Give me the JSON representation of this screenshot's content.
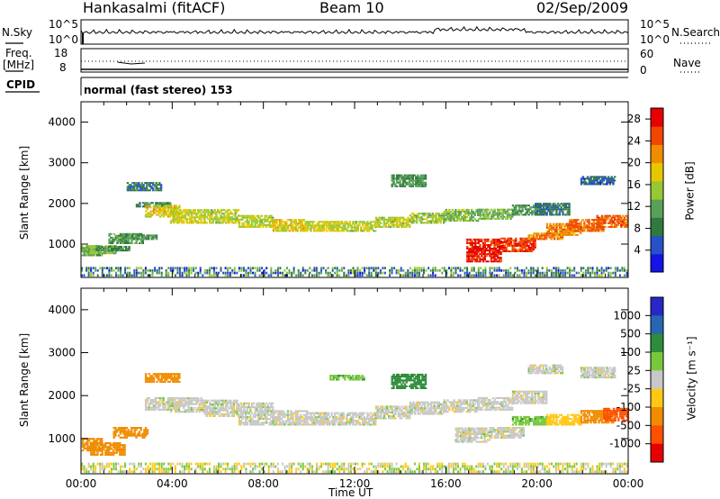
{
  "header": {
    "station": "Hankasalmi (fitACF)",
    "beam": "Beam 10",
    "date": "02/Sep/2009"
  },
  "strips": {
    "nsky_label": "N.Sky",
    "nsky_ticks": [
      "10^5",
      "10^0"
    ],
    "nsearch_label": "N.Search",
    "freq_label_1": "Freq.",
    "freq_label_2": "[MHz]",
    "freq_ticks": [
      "18",
      "8"
    ],
    "nave_label": "Nave",
    "nave_ticks": [
      "60",
      "0"
    ],
    "cpid_label": "CPID",
    "cpid_value": "normal (fast stereo) 153"
  },
  "colors": {
    "power": [
      "#1414e6",
      "#2850c8",
      "#2f7a3c",
      "#5aa05a",
      "#96c832",
      "#e6c800",
      "#f08c00",
      "#f04600",
      "#e60000"
    ],
    "velocity": [
      "#2828c8",
      "#2866b4",
      "#2f8c3c",
      "#78c83c",
      "#c8c8c8",
      "#ffc814",
      "#f08c00",
      "#ff5000",
      "#e60000"
    ]
  },
  "chart_data": [
    {
      "type": "heatmap",
      "panel": "power",
      "ylabel": "Slant Range [km]",
      "xlabel": "",
      "yticks": [
        "1000",
        "2000",
        "3000",
        "4000"
      ],
      "ylim": [
        180,
        4500
      ],
      "xlim": [
        "00:00",
        "24:00"
      ],
      "colorbar": {
        "label": "Power [dB]",
        "ticks": [
          "4",
          "8",
          "12",
          "16",
          "20",
          "24",
          "28"
        ],
        "range": [
          0,
          30
        ]
      },
      "series": [
        {
          "values": [
            [
              0.0,
              700,
              900,
              12
            ],
            [
              0.6,
              750,
              950,
              14
            ],
            [
              1.2,
              820,
              950,
              10
            ],
            [
              1.8,
              1000,
              1250,
              11
            ],
            [
              2.4,
              1100,
              1200,
              10
            ],
            [
              2.6,
              2300,
              2500,
              8
            ],
            [
              3.0,
              1900,
              2000,
              9
            ],
            [
              3.4,
              1650,
              1950,
              18
            ],
            [
              4.5,
              1500,
              1850,
              17
            ],
            [
              6.0,
              1500,
              1850,
              16
            ],
            [
              7.5,
              1400,
              1700,
              16
            ],
            [
              9.0,
              1300,
              1600,
              18
            ],
            [
              10.5,
              1300,
              1550,
              17
            ],
            [
              12.0,
              1300,
              1550,
              16
            ],
            [
              13.5,
              1400,
              1650,
              16
            ],
            [
              15.0,
              1500,
              1750,
              15
            ],
            [
              16.5,
              1550,
              1850,
              14
            ],
            [
              18.0,
              1600,
              1850,
              13
            ],
            [
              19.5,
              1700,
              1950,
              10
            ],
            [
              20.5,
              1700,
              2000,
              8
            ],
            [
              17.5,
              550,
              1100,
              28
            ],
            [
              19.0,
              800,
              1150,
              26
            ],
            [
              20.2,
              1100,
              1250,
              22
            ],
            [
              21.0,
              1200,
              1500,
              22
            ],
            [
              22.0,
              1300,
              1600,
              24
            ],
            [
              23.2,
              1400,
              1700,
              24
            ],
            [
              14.2,
              2400,
              2700,
              10
            ],
            [
              22.5,
              2450,
              2650,
              6
            ]
          ]
        }
      ]
    },
    {
      "type": "heatmap",
      "panel": "velocity",
      "ylabel": "Slant Range [km]",
      "xlabel": "Time UT",
      "yticks": [
        "1000",
        "2000",
        "3000",
        "4000"
      ],
      "xticks": [
        "00:00",
        "04:00",
        "08:00",
        "12:00",
        "16:00",
        "20:00",
        "00:00"
      ],
      "ylim": [
        180,
        4500
      ],
      "xlim": [
        "00:00",
        "24:00"
      ],
      "colorbar": {
        "label": "Velocity [m s⁻¹]",
        "ticks": [
          "1000",
          "500",
          "100",
          "25",
          "-25",
          "-100",
          "-500",
          "-1000"
        ]
      },
      "series": [
        {
          "values": [
            [
              0.0,
              700,
              1000,
              -300
            ],
            [
              1.0,
              600,
              900,
              -200
            ],
            [
              2.0,
              1000,
              1250,
              -150
            ],
            [
              3.4,
              2300,
              2500,
              -200
            ],
            [
              3.4,
              1650,
              1950,
              0
            ],
            [
              4.5,
              1600,
              1950,
              0
            ],
            [
              6.0,
              1500,
              1900,
              0
            ],
            [
              7.5,
              1300,
              1800,
              0
            ],
            [
              9.0,
              1300,
              1650,
              0
            ],
            [
              10.5,
              1300,
              1600,
              0
            ],
            [
              12.0,
              1300,
              1600,
              0
            ],
            [
              13.5,
              1450,
              1750,
              0
            ],
            [
              15.0,
              1550,
              1850,
              0
            ],
            [
              16.5,
              1600,
              1900,
              0
            ],
            [
              18.0,
              1650,
              1950,
              0
            ],
            [
              19.5,
              1800,
              2100,
              0
            ],
            [
              17.0,
              900,
              1250,
              0
            ],
            [
              18.5,
              1000,
              1250,
              0
            ],
            [
              19.5,
              1300,
              1500,
              80
            ],
            [
              21.0,
              1300,
              1550,
              -60
            ],
            [
              22.5,
              1350,
              1650,
              -300
            ],
            [
              23.5,
              1400,
              1700,
              -600
            ],
            [
              14.2,
              2150,
              2500,
              150
            ],
            [
              11.5,
              2350,
              2450,
              80
            ],
            [
              22.5,
              2400,
              2650,
              0
            ],
            [
              20.2,
              2500,
              2700,
              0
            ]
          ]
        }
      ]
    }
  ]
}
